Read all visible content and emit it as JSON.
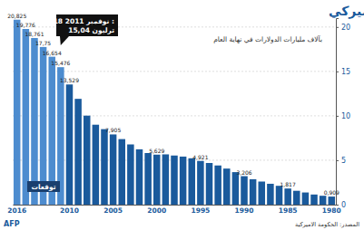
{
  "chart_data": {
    "type": "bar",
    "title": "الدين الاميركي",
    "subtitle": "بآلاف مليارات الدولارات في نهاية العام",
    "annotations": [
      "18 نوفمبر 2011 :",
      "15,04 ترليون",
      "توقعات",
      "المصدر: الحكومة الاميركية",
      "AFP"
    ],
    "categories": [
      2016,
      null,
      null,
      null,
      null,
      null,
      2010,
      null,
      null,
      null,
      null,
      2005,
      null,
      null,
      null,
      null,
      2000,
      null,
      null,
      null,
      null,
      1995,
      null,
      null,
      null,
      null,
      1990,
      null,
      null,
      null,
      null,
      1985,
      null,
      null,
      null,
      null,
      1980
    ],
    "values": [
      20.825,
      19.776,
      18.761,
      17.75,
      16.654,
      15.476,
      13.529,
      11.91,
      10.02,
      9.0,
      8.5,
      7.905,
      7.38,
      6.78,
      6.23,
      5.81,
      5.629,
      5.66,
      5.53,
      5.41,
      5.22,
      4.921,
      4.69,
      4.41,
      4.06,
      3.66,
      3.206,
      2.86,
      2.6,
      2.35,
      2.12,
      1.817,
      1.56,
      1.37,
      1.14,
      1.0,
      0.909
    ],
    "value_labels": [
      "20,825",
      "19,776",
      "18,761",
      "17,75",
      "16,654",
      "15,476",
      "13,529",
      null,
      null,
      null,
      null,
      "7,905",
      null,
      null,
      null,
      null,
      "5,629",
      null,
      null,
      null,
      null,
      "4,921",
      null,
      null,
      null,
      null,
      "3,206",
      null,
      null,
      null,
      null,
      "1,817",
      null,
      null,
      null,
      null,
      "0,909"
    ],
    "data_labels": true,
    "colors": [
      "#4d8ccf",
      "#4d8ccf",
      "#4d8ccf",
      "#4d8ccf",
      "#4d8ccf",
      "#4d8ccf",
      "#1a5a9c",
      "#1a5a9c",
      "#1a5a9c",
      "#1a5a9c",
      "#1a5a9c",
      "#1a5a9c",
      "#1a5a9c",
      "#1a5a9c",
      "#1a5a9c",
      "#1a5a9c",
      "#1a5a9c",
      "#1a5a9c",
      "#1a5a9c",
      "#1a5a9c",
      "#1a5a9c",
      "#1a5a9c",
      "#1a5a9c",
      "#1a5a9c",
      "#1a5a9c",
      "#1a5a9c",
      "#1a5a9c",
      "#1a5a9c",
      "#1a5a9c",
      "#1a5a9c",
      "#1a5a9c",
      "#1a5a9c",
      "#1a5a9c",
      "#1a5a9c",
      "#1a5a9c",
      "#1a5a9c",
      "#1a5a9c"
    ],
    "ylim": [
      0,
      21
    ],
    "yticks": [
      0,
      5,
      10,
      15,
      20
    ],
    "grid": true
  }
}
